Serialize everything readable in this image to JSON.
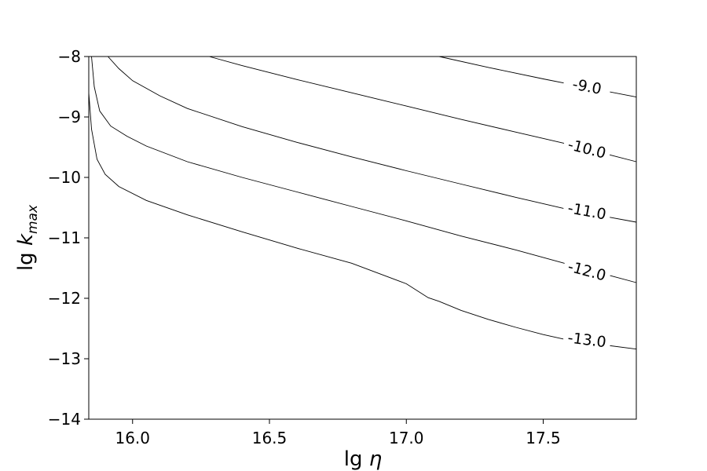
{
  "chart_data": {
    "type": "line",
    "title": "",
    "xlabel": "lg η",
    "ylabel": "lg k_max",
    "xlim": [
      15.84,
      17.84
    ],
    "ylim": [
      -14,
      -8
    ],
    "x_ticks": [
      16.0,
      16.5,
      17.0,
      17.5
    ],
    "x_tick_labels": [
      "16.0",
      "16.5",
      "17.0",
      "17.5"
    ],
    "y_ticks": [
      -8,
      -9,
      -10,
      -11,
      -12,
      -13,
      -14
    ],
    "y_tick_labels": [
      "−8",
      "−9",
      "−10",
      "−11",
      "−12",
      "−13",
      "−14"
    ],
    "grid": false,
    "legend": "none",
    "line_color": "#000000",
    "contours": [
      {
        "level_label": "-9.0",
        "label_position": {
          "x": 17.66,
          "y": -8.49
        },
        "points": [
          [
            17.12,
            -8.0
          ],
          [
            17.3,
            -8.18
          ],
          [
            17.5,
            -8.37
          ],
          [
            17.6,
            -8.46
          ],
          [
            17.84,
            -8.67
          ]
        ]
      },
      {
        "level_label": "-10.0",
        "label_position": {
          "x": 17.66,
          "y": -9.52
        },
        "points": [
          [
            16.28,
            -8.0
          ],
          [
            16.4,
            -8.15
          ],
          [
            16.6,
            -8.38
          ],
          [
            16.8,
            -8.6
          ],
          [
            17.0,
            -8.82
          ],
          [
            17.2,
            -9.04
          ],
          [
            17.4,
            -9.25
          ],
          [
            17.6,
            -9.46
          ],
          [
            17.84,
            -9.74
          ]
        ]
      },
      {
        "level_label": "-11.0",
        "label_position": {
          "x": 17.66,
          "y": -10.55
        },
        "points": [
          [
            15.91,
            -8.0
          ],
          [
            15.95,
            -8.2
          ],
          [
            16.0,
            -8.4
          ],
          [
            16.1,
            -8.65
          ],
          [
            16.2,
            -8.86
          ],
          [
            16.4,
            -9.16
          ],
          [
            16.6,
            -9.42
          ],
          [
            16.8,
            -9.66
          ],
          [
            17.0,
            -9.89
          ],
          [
            17.2,
            -10.11
          ],
          [
            17.4,
            -10.33
          ],
          [
            17.6,
            -10.54
          ],
          [
            17.84,
            -10.74
          ]
        ]
      },
      {
        "level_label": "-12.0",
        "label_position": {
          "x": 17.66,
          "y": -11.54
        },
        "points": [
          [
            15.85,
            -8.0
          ],
          [
            15.86,
            -8.5
          ],
          [
            15.88,
            -8.9
          ],
          [
            15.92,
            -9.15
          ],
          [
            15.98,
            -9.32
          ],
          [
            16.05,
            -9.48
          ],
          [
            16.2,
            -9.74
          ],
          [
            16.4,
            -10.0
          ],
          [
            16.6,
            -10.24
          ],
          [
            16.8,
            -10.48
          ],
          [
            17.0,
            -10.72
          ],
          [
            17.2,
            -10.97
          ],
          [
            17.4,
            -11.2
          ],
          [
            17.6,
            -11.45
          ],
          [
            17.84,
            -11.74
          ]
        ]
      },
      {
        "level_label": "-13.0",
        "label_position": {
          "x": 17.66,
          "y": -12.68
        },
        "points": [
          [
            15.84,
            -8.6
          ],
          [
            15.85,
            -9.2
          ],
          [
            15.87,
            -9.7
          ],
          [
            15.9,
            -9.95
          ],
          [
            15.95,
            -10.15
          ],
          [
            16.05,
            -10.38
          ],
          [
            16.2,
            -10.62
          ],
          [
            16.4,
            -10.9
          ],
          [
            16.6,
            -11.17
          ],
          [
            16.8,
            -11.42
          ],
          [
            17.0,
            -11.76
          ],
          [
            17.08,
            -11.99
          ],
          [
            17.12,
            -12.05
          ],
          [
            17.2,
            -12.2
          ],
          [
            17.3,
            -12.35
          ],
          [
            17.4,
            -12.48
          ],
          [
            17.5,
            -12.6
          ],
          [
            17.6,
            -12.7
          ],
          [
            17.84,
            -12.84
          ]
        ]
      }
    ]
  }
}
